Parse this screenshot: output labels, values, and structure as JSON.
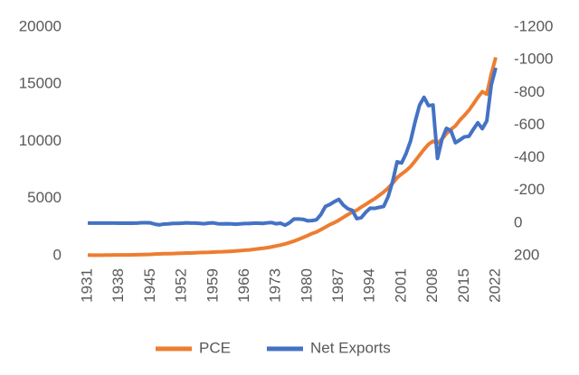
{
  "chart_data": {
    "type": "line",
    "x": [
      1931,
      1932,
      1933,
      1934,
      1935,
      1936,
      1937,
      1938,
      1939,
      1940,
      1941,
      1942,
      1943,
      1944,
      1945,
      1946,
      1947,
      1948,
      1949,
      1950,
      1951,
      1952,
      1953,
      1954,
      1955,
      1956,
      1957,
      1958,
      1959,
      1960,
      1961,
      1962,
      1963,
      1964,
      1965,
      1966,
      1967,
      1968,
      1969,
      1970,
      1971,
      1972,
      1973,
      1974,
      1975,
      1976,
      1977,
      1978,
      1979,
      1980,
      1981,
      1982,
      1983,
      1984,
      1985,
      1986,
      1987,
      1988,
      1989,
      1990,
      1991,
      1992,
      1993,
      1994,
      1995,
      1996,
      1997,
      1998,
      1999,
      2000,
      2001,
      2002,
      2003,
      2004,
      2005,
      2006,
      2007,
      2008,
      2009,
      2010,
      2011,
      2012,
      2013,
      2014,
      2015,
      2016,
      2017,
      2018,
      2019,
      2020,
      2021,
      2022
    ],
    "series": [
      {
        "name": "PCE",
        "color": "#ed7d31",
        "values": [
          61,
          49,
          46,
          52,
          56,
          62,
          67,
          65,
          68,
          72,
          81,
          89,
          100,
          109,
          120,
          144,
          162,
          175,
          179,
          192,
          209,
          219,
          233,
          240,
          259,
          272,
          287,
          296,
          318,
          331,
          342,
          363,
          383,
          411,
          443,
          480,
          507,
          558,
          605,
          648,
          702,
          770,
          852,
          933,
          1034,
          1152,
          1278,
          1429,
          1593,
          1755,
          1938,
          2074,
          2287,
          2498,
          2723,
          2895,
          3106,
          3351,
          3596,
          3835,
          3981,
          4257,
          4494,
          4748,
          4987,
          5273,
          5571,
          5919,
          6343,
          6831,
          7150,
          7439,
          7804,
          8285,
          8794,
          9304,
          9751,
          10014,
          9847,
          10202,
          10689,
          11051,
          11362,
          11863,
          12272,
          12719,
          13270,
          13854,
          14352,
          14134,
          15902,
          17350
        ]
      },
      {
        "name": "Net Exports",
        "color": "#4472c4",
        "axis": "y2",
        "values": [
          0,
          0,
          0,
          0,
          0,
          0,
          0,
          1,
          1,
          1,
          1,
          0,
          -2,
          -2,
          -1,
          7,
          11,
          6,
          5,
          2,
          2,
          1,
          -1,
          0,
          0,
          2,
          4,
          0,
          -1,
          4,
          5,
          4,
          5,
          7,
          5,
          3,
          3,
          1,
          1,
          2,
          -1,
          -3,
          4,
          1,
          13,
          -2,
          -25,
          -25,
          -23,
          -14,
          -15,
          -20,
          -52,
          -102,
          -114,
          -131,
          -145,
          -110,
          -88,
          -78,
          -27,
          -33,
          -66,
          -91,
          -90,
          -96,
          -102,
          -162,
          -255,
          -375,
          -368,
          -426,
          -503,
          -619,
          -722,
          -770,
          -719,
          -723,
          -396,
          -513,
          -580,
          -565,
          -492,
          -509,
          -528,
          -531,
          -574,
          -614,
          -578,
          -626,
          -846,
          -951
        ]
      }
    ],
    "xlim": [
      1931,
      2022
    ],
    "xticks": [
      1931,
      1938,
      1945,
      1952,
      1959,
      1966,
      1973,
      1980,
      1987,
      1994,
      2001,
      2008,
      2015,
      2022
    ],
    "ylim": [
      0,
      20000
    ],
    "yticks": [
      0,
      5000,
      10000,
      15000,
      20000
    ],
    "y2lim": [
      200,
      -1200
    ],
    "y2ticks": [
      200,
      0,
      -200,
      -400,
      -600,
      -800,
      -1000,
      -1200
    ],
    "legend": "bottom"
  }
}
